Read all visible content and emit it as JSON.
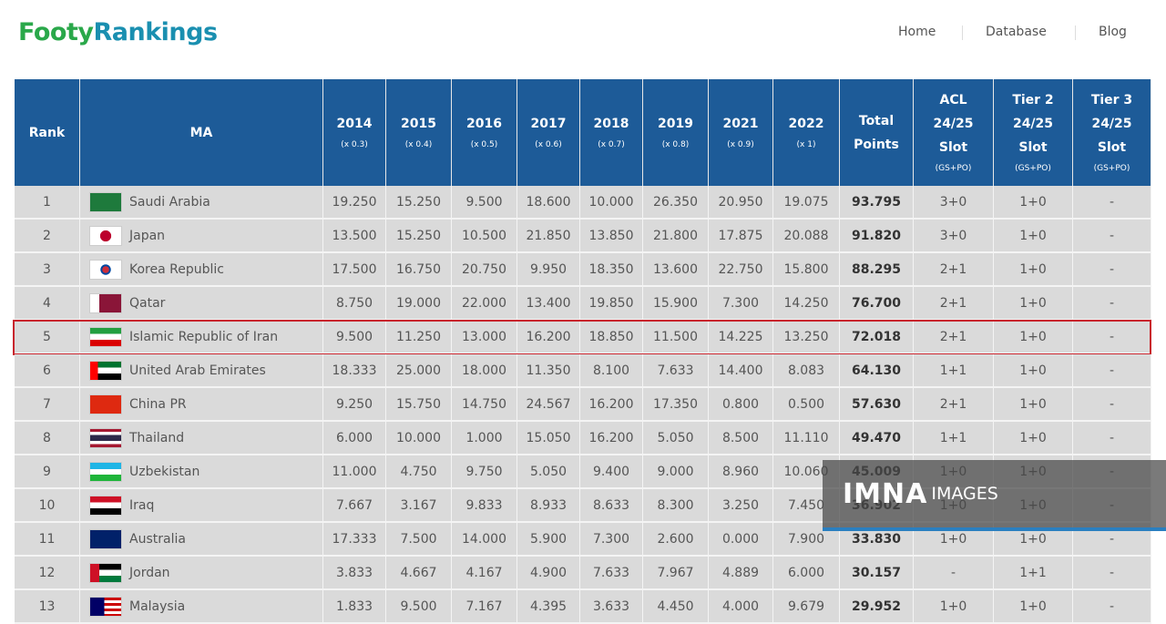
{
  "header": {
    "logo": {
      "part1": "Footy",
      "part2": "Rankings"
    },
    "nav": [
      "Home",
      "Database",
      "Blog"
    ]
  },
  "table": {
    "columns": [
      {
        "lines": [
          "Rank"
        ]
      },
      {
        "lines": [
          "MA"
        ]
      },
      {
        "lines": [
          "2014"
        ],
        "note": "(x 0.3)"
      },
      {
        "lines": [
          "2015"
        ],
        "note": "(x 0.4)"
      },
      {
        "lines": [
          "2016"
        ],
        "note": "(x 0.5)"
      },
      {
        "lines": [
          "2017"
        ],
        "note": "(x 0.6)"
      },
      {
        "lines": [
          "2018"
        ],
        "note": "(x 0.7)"
      },
      {
        "lines": [
          "2019"
        ],
        "note": "(x 0.8)"
      },
      {
        "lines": [
          "2021"
        ],
        "note": "(x 0.9)"
      },
      {
        "lines": [
          "2022"
        ],
        "note": "(x 1)"
      },
      {
        "lines": [
          "Total",
          "Points"
        ]
      },
      {
        "lines": [
          "ACL",
          "24/25",
          "Slot"
        ],
        "note": "(GS+PO)"
      },
      {
        "lines": [
          "Tier 2",
          "24/25",
          "Slot"
        ],
        "note": "(GS+PO)"
      },
      {
        "lines": [
          "Tier 3",
          "24/25",
          "Slot"
        ],
        "note": "(GS+PO)"
      }
    ],
    "rows": [
      {
        "rank": 1,
        "ma": "Saudi Arabia",
        "points": [
          "19.250",
          "15.250",
          "9.500",
          "18.600",
          "10.000",
          "26.350",
          "20.950",
          "19.075"
        ],
        "total": "93.795",
        "acl": "3+0",
        "tier2": "1+0",
        "tier3": "-"
      },
      {
        "rank": 2,
        "ma": "Japan",
        "points": [
          "13.500",
          "15.250",
          "10.500",
          "21.850",
          "13.850",
          "21.800",
          "17.875",
          "20.088"
        ],
        "total": "91.820",
        "acl": "3+0",
        "tier2": "1+0",
        "tier3": "-"
      },
      {
        "rank": 3,
        "ma": "Korea Republic",
        "points": [
          "17.500",
          "16.750",
          "20.750",
          "9.950",
          "18.350",
          "13.600",
          "22.750",
          "15.800"
        ],
        "total": "88.295",
        "acl": "2+1",
        "tier2": "1+0",
        "tier3": "-"
      },
      {
        "rank": 4,
        "ma": "Qatar",
        "points": [
          "8.750",
          "19.000",
          "22.000",
          "13.400",
          "19.850",
          "15.900",
          "7.300",
          "14.250"
        ],
        "total": "76.700",
        "acl": "2+1",
        "tier2": "1+0",
        "tier3": "-"
      },
      {
        "rank": 5,
        "ma": "Islamic Republic of Iran",
        "points": [
          "9.500",
          "11.250",
          "13.000",
          "16.200",
          "18.850",
          "11.500",
          "14.225",
          "13.250"
        ],
        "total": "72.018",
        "acl": "2+1",
        "tier2": "1+0",
        "tier3": "-",
        "highlighted": true
      },
      {
        "rank": 6,
        "ma": "United Arab Emirates",
        "points": [
          "18.333",
          "25.000",
          "18.000",
          "11.350",
          "8.100",
          "7.633",
          "14.400",
          "8.083"
        ],
        "total": "64.130",
        "acl": "1+1",
        "tier2": "1+0",
        "tier3": "-"
      },
      {
        "rank": 7,
        "ma": "China PR",
        "points": [
          "9.250",
          "15.750",
          "14.750",
          "24.567",
          "16.200",
          "17.350",
          "0.800",
          "0.500"
        ],
        "total": "57.630",
        "acl": "2+1",
        "tier2": "1+0",
        "tier3": "-"
      },
      {
        "rank": 8,
        "ma": "Thailand",
        "points": [
          "6.000",
          "10.000",
          "1.000",
          "15.050",
          "16.200",
          "5.050",
          "8.500",
          "11.110"
        ],
        "total": "49.470",
        "acl": "1+1",
        "tier2": "1+0",
        "tier3": "-"
      },
      {
        "rank": 9,
        "ma": "Uzbekistan",
        "points": [
          "11.000",
          "4.750",
          "9.750",
          "5.050",
          "9.400",
          "9.000",
          "8.960",
          "10.060"
        ],
        "total": "45.009",
        "acl": "1+0",
        "tier2": "1+0",
        "tier3": "-"
      },
      {
        "rank": 10,
        "ma": "Iraq",
        "points": [
          "7.667",
          "3.167",
          "9.833",
          "8.933",
          "8.633",
          "8.300",
          "3.250",
          "7.450"
        ],
        "total": "36.902",
        "acl": "1+0",
        "tier2": "1+0",
        "tier3": "-"
      },
      {
        "rank": 11,
        "ma": "Australia",
        "points": [
          "17.333",
          "7.500",
          "14.000",
          "5.900",
          "7.300",
          "2.600",
          "0.000",
          "7.900"
        ],
        "total": "33.830",
        "acl": "1+0",
        "tier2": "1+0",
        "tier3": "-"
      },
      {
        "rank": 12,
        "ma": "Jordan",
        "points": [
          "3.833",
          "4.667",
          "4.167",
          "4.900",
          "7.633",
          "7.967",
          "4.889",
          "6.000"
        ],
        "total": "30.157",
        "acl": "-",
        "tier2": "1+1",
        "tier3": "-"
      },
      {
        "rank": 13,
        "ma": "Malaysia",
        "points": [
          "1.833",
          "9.500",
          "7.167",
          "4.395",
          "3.633",
          "4.450",
          "4.000",
          "9.679"
        ],
        "total": "29.952",
        "acl": "1+0",
        "tier2": "1+0",
        "tier3": "-"
      }
    ]
  },
  "watermark": {
    "brand": "IMNA",
    "label": "IMAGES"
  }
}
